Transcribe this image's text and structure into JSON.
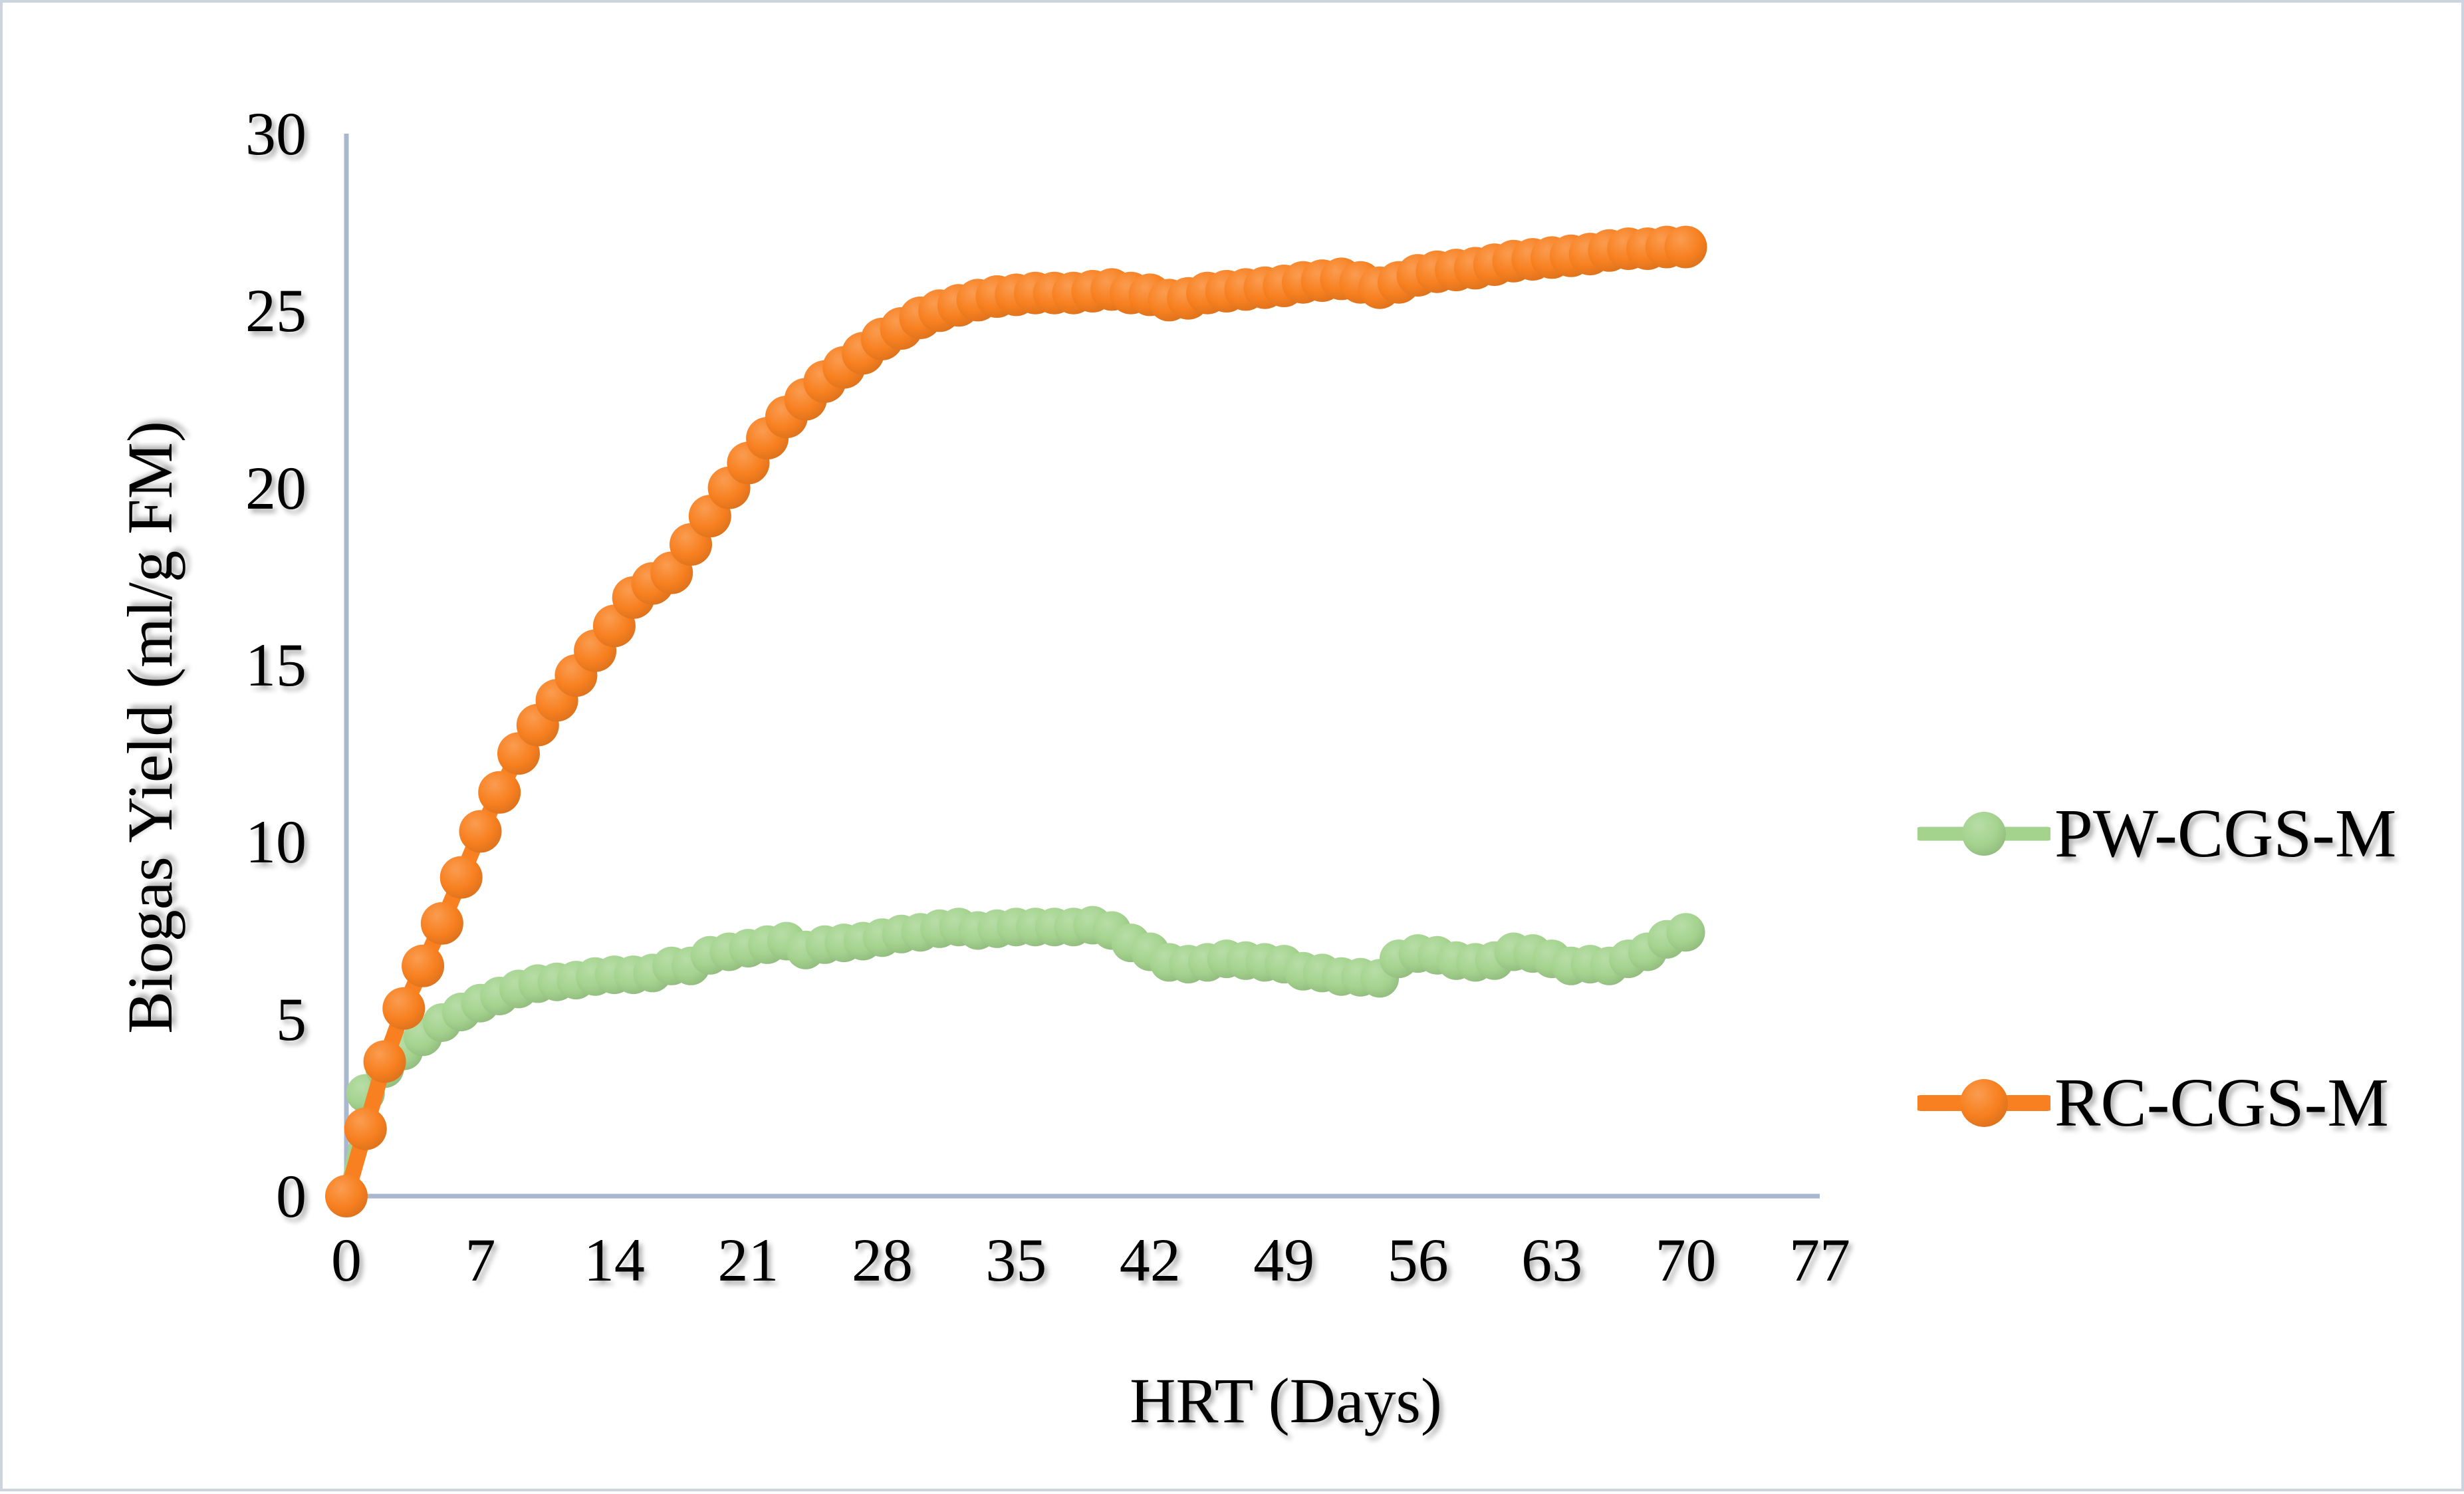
{
  "figure": {
    "background": "#ffffff",
    "border_color": "#ccd4e0"
  },
  "chart_data": {
    "type": "line",
    "title": "",
    "xlabel": "HRT (Days)",
    "ylabel": "Biogas Yield (ml/g FM)",
    "xlim": [
      0,
      77
    ],
    "ylim": [
      0,
      30
    ],
    "grid": false,
    "legend_position": "right",
    "axis_color": "#a9b8ce",
    "x_ticks": [
      0,
      7,
      14,
      21,
      28,
      35,
      42,
      49,
      56,
      63,
      70,
      77
    ],
    "y_ticks": [
      0,
      5,
      10,
      15,
      20,
      25,
      30
    ],
    "x": [
      0,
      1,
      2,
      3,
      4,
      5,
      6,
      7,
      8,
      9,
      10,
      11,
      12,
      13,
      14,
      15,
      16,
      17,
      18,
      19,
      20,
      21,
      22,
      23,
      24,
      25,
      26,
      27,
      28,
      29,
      30,
      31,
      32,
      33,
      34,
      35,
      36,
      37,
      38,
      39,
      40,
      41,
      42,
      43,
      44,
      45,
      46,
      47,
      48,
      49,
      50,
      51,
      52,
      53,
      54,
      55,
      56,
      57,
      58,
      59,
      60,
      61,
      62,
      63,
      64,
      65,
      66,
      67,
      68,
      69,
      70
    ],
    "series": [
      {
        "name": "PW-CGS-M",
        "color": "#A4D38E",
        "marker_radius": 29,
        "line_width": 21,
        "values": [
          0,
          2.9,
          3.6,
          4.1,
          4.5,
          4.9,
          5.2,
          5.45,
          5.65,
          5.85,
          6.0,
          6.05,
          6.1,
          6.2,
          6.25,
          6.25,
          6.3,
          6.5,
          6.5,
          6.8,
          6.9,
          7.0,
          7.1,
          7.2,
          6.95,
          7.1,
          7.15,
          7.2,
          7.3,
          7.4,
          7.45,
          7.55,
          7.6,
          7.5,
          7.55,
          7.6,
          7.6,
          7.6,
          7.6,
          7.65,
          7.5,
          7.15,
          6.9,
          6.6,
          6.55,
          6.6,
          6.7,
          6.65,
          6.6,
          6.55,
          6.35,
          6.3,
          6.2,
          6.18,
          6.15,
          6.7,
          6.85,
          6.8,
          6.65,
          6.6,
          6.65,
          6.9,
          6.85,
          6.7,
          6.5,
          6.55,
          6.5,
          6.7,
          6.9,
          7.25,
          7.45
        ]
      },
      {
        "name": "RC-CGS-M",
        "color": "#F88020",
        "marker_radius": 32,
        "line_width": 24,
        "values": [
          0,
          1.9,
          3.8,
          5.3,
          6.5,
          7.7,
          9.0,
          10.3,
          11.4,
          12.5,
          13.3,
          14.0,
          14.7,
          15.4,
          16.1,
          16.9,
          17.3,
          17.6,
          18.4,
          19.2,
          20.0,
          20.7,
          21.4,
          22.0,
          22.5,
          23.0,
          23.4,
          23.8,
          24.2,
          24.5,
          24.8,
          25.0,
          25.15,
          25.3,
          25.4,
          25.45,
          25.5,
          25.5,
          25.5,
          25.55,
          25.6,
          25.5,
          25.45,
          25.3,
          25.35,
          25.5,
          25.55,
          25.6,
          25.65,
          25.7,
          25.8,
          25.85,
          25.9,
          25.8,
          25.65,
          25.8,
          26.0,
          26.1,
          26.15,
          26.2,
          26.3,
          26.4,
          26.45,
          26.5,
          26.55,
          26.6,
          26.7,
          26.75,
          26.75,
          26.8,
          26.8
        ]
      }
    ]
  }
}
